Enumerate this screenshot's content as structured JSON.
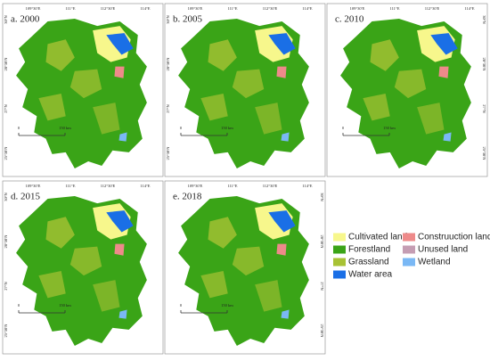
{
  "panels": [
    {
      "label": "a. 2000"
    },
    {
      "label": "b. 2005"
    },
    {
      "label": "c. 2010"
    },
    {
      "label": "d. 2015"
    },
    {
      "label": "e. 2018"
    }
  ],
  "axes": {
    "longitude": [
      "109°30′E",
      "111°E",
      "112°30′E",
      "114°E"
    ],
    "latitude": [
      "30°N",
      "28°30′N",
      "27°N",
      "25°30′N"
    ]
  },
  "scale_bar": {
    "start": "0",
    "end": "150 km"
  },
  "legend": [
    {
      "label": "Cultivated land",
      "color": "#f7f78c"
    },
    {
      "label": "Construuction land",
      "color": "#ee8a8a"
    },
    {
      "label": "Forestland",
      "color": "#3aa417"
    },
    {
      "label": "Unused land",
      "color": "#c59db3"
    },
    {
      "label": "Grassland",
      "color": "#a8c234"
    },
    {
      "label": "Wetland",
      "color": "#7ab8f5"
    },
    {
      "label": "Water area",
      "color": "#1a6fe6"
    }
  ]
}
